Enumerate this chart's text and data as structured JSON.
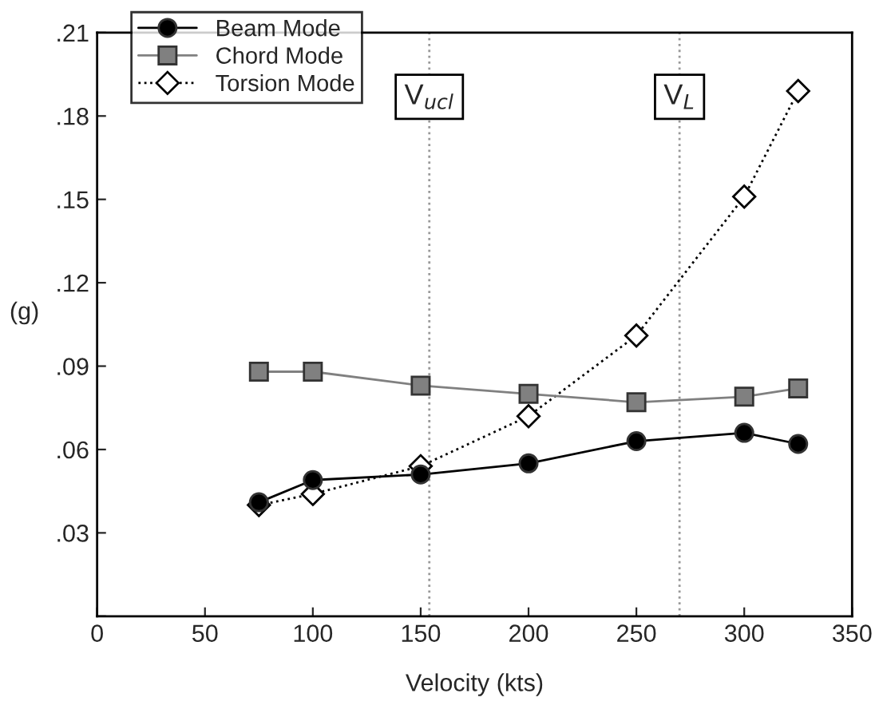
{
  "chart_data": {
    "type": "line",
    "xlabel": "Velocity (kts)",
    "ylabel": "(g)",
    "x": [
      75,
      100,
      150,
      200,
      250,
      300,
      325
    ],
    "series": [
      {
        "name": "Beam Mode",
        "color": "#000000",
        "values": [
          0.041,
          0.049,
          0.051,
          0.055,
          0.063,
          0.066,
          0.062
        ],
        "marker": "circle",
        "line_style": "solid"
      },
      {
        "name": "Chord Mode",
        "color": "#808080",
        "values": [
          0.088,
          0.088,
          0.083,
          0.08,
          0.077,
          0.079,
          0.082
        ],
        "marker": "square",
        "line_style": "solid"
      },
      {
        "name": "Torsion Mode",
        "color": "#ffffff",
        "values": [
          0.04,
          0.044,
          0.054,
          0.072,
          0.101,
          0.151,
          0.189
        ],
        "marker": "diamond",
        "line_style": "dotted"
      }
    ],
    "xlim": [
      0,
      350
    ],
    "xticks": [
      0,
      50,
      100,
      150,
      200,
      250,
      300,
      350
    ],
    "ylim": [
      0,
      0.21
    ],
    "yticks": [
      {
        "value": 0,
        "label": null
      },
      {
        "value": 0.03,
        "label": ".03"
      },
      {
        "value": 0.06,
        "label": ".06"
      },
      {
        "value": 0.09,
        "label": ".09"
      },
      {
        "value": 0.12,
        "label": ".12"
      },
      {
        "value": 0.15,
        "label": ".15"
      },
      {
        "value": 0.18,
        "label": ".18"
      },
      {
        "value": 0.21,
        "label": ".21"
      }
    ],
    "ref_lines": [
      {
        "axis": "x",
        "value": 154,
        "label": "V$_{ucl}$",
        "color": "#999999",
        "line_style": "dotted"
      },
      {
        "axis": "x",
        "value": 270,
        "label": "V$_{L}$",
        "color": "#999999",
        "line_style": "dotted"
      }
    ],
    "grid": false,
    "legend": "top left"
  }
}
